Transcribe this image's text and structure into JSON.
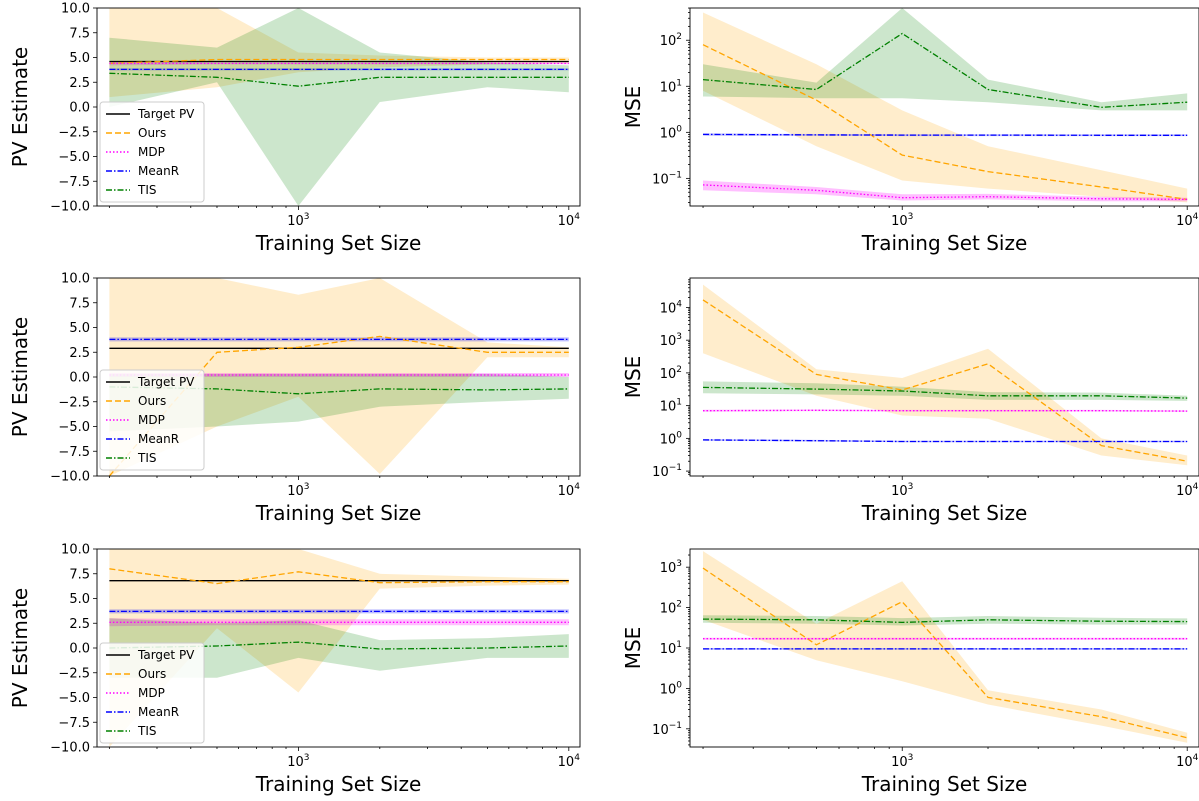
{
  "chart_data": [
    {
      "type": "line",
      "panel": "pv-1",
      "xlabel": "Training Set Size",
      "ylabel": "PV Estimate",
      "xscale": "log",
      "yscale": "linear",
      "xlim": [
        180,
        11000
      ],
      "ylim": [
        -10,
        10
      ],
      "xticks": [
        {
          "value": 1000,
          "base": "10",
          "exp": "3"
        },
        {
          "value": 10000,
          "base": "10",
          "exp": "4"
        }
      ],
      "yticks": [
        "-10.0",
        "-7.5",
        "-5.0",
        "-2.5",
        "0.0",
        "2.5",
        "5.0",
        "7.5",
        "10.0"
      ],
      "legend": {
        "placement": "lower-left",
        "entries": [
          "Target PV",
          "Ours",
          "MDP",
          "MeanR",
          "TIS"
        ]
      },
      "x": [
        200,
        500,
        1000,
        2000,
        5000,
        10000
      ],
      "series": [
        {
          "name": "Target PV",
          "color": "#000000",
          "dash": "solid",
          "values": [
            4.6,
            4.6,
            4.6,
            4.6,
            4.6,
            4.6
          ]
        },
        {
          "name": "Ours",
          "color": "#ffa500",
          "dash": "dashed",
          "values": [
            4.4,
            4.8,
            4.8,
            4.8,
            4.8,
            4.8
          ],
          "lower": [
            1.0,
            2.0,
            3.5,
            4.0,
            4.3,
            4.4
          ],
          "upper": [
            10.0,
            10.0,
            5.5,
            5.2,
            5.0,
            5.0
          ]
        },
        {
          "name": "MDP",
          "color": "#ff00ff",
          "dash": "dotted",
          "values": [
            4.4,
            4.4,
            4.4,
            4.4,
            4.4,
            4.4
          ],
          "lower": [
            4.2,
            4.3,
            4.3,
            4.3,
            4.3,
            4.3
          ],
          "upper": [
            4.6,
            4.5,
            4.5,
            4.5,
            4.5,
            4.5
          ]
        },
        {
          "name": "MeanR",
          "color": "#0000ff",
          "dash": "dashdot",
          "values": [
            3.8,
            3.8,
            3.8,
            3.8,
            3.8,
            3.8
          ],
          "lower": [
            3.7,
            3.7,
            3.7,
            3.7,
            3.7,
            3.7
          ],
          "upper": [
            3.9,
            3.9,
            3.9,
            3.9,
            3.9,
            3.9
          ]
        },
        {
          "name": "TIS",
          "color": "#008000",
          "dash": "dashdot",
          "values": [
            3.4,
            3.0,
            2.1,
            3.0,
            3.0,
            3.0
          ],
          "lower": [
            0.0,
            2.5,
            -10.0,
            0.5,
            2.0,
            1.5
          ],
          "upper": [
            7.0,
            6.0,
            10.0,
            5.5,
            4.5,
            4.2
          ]
        }
      ]
    },
    {
      "type": "line",
      "panel": "mse-1",
      "xlabel": "Training Set Size",
      "ylabel": "MSE",
      "xscale": "log",
      "yscale": "log",
      "xlim": [
        180,
        11000
      ],
      "ylim_exp": [
        -1.6,
        2.7
      ],
      "xticks": [
        {
          "value": 1000,
          "base": "10",
          "exp": "3"
        },
        {
          "value": 10000,
          "base": "10",
          "exp": "4"
        }
      ],
      "yticks": [
        {
          "exp_value": -1,
          "base": "10",
          "exp": "−1"
        },
        {
          "exp_value": 0,
          "base": "10",
          "exp": "0"
        },
        {
          "exp_value": 1,
          "base": "10",
          "exp": "1"
        },
        {
          "exp_value": 2,
          "base": "10",
          "exp": "2"
        }
      ],
      "x": [
        200,
        500,
        1000,
        2000,
        5000,
        10000
      ],
      "series": [
        {
          "name": "Ours",
          "color": "#ffa500",
          "dash": "dashed",
          "values": [
            80,
            5.0,
            0.32,
            0.14,
            0.065,
            0.035
          ],
          "lower": [
            8,
            0.5,
            0.09,
            0.06,
            0.04,
            0.03
          ],
          "upper": [
            400,
            30,
            3.0,
            0.5,
            0.15,
            0.06
          ]
        },
        {
          "name": "MDP",
          "color": "#ff00ff",
          "dash": "dotted",
          "values": [
            0.072,
            0.055,
            0.038,
            0.04,
            0.036,
            0.035
          ],
          "lower": [
            0.055,
            0.045,
            0.033,
            0.035,
            0.032,
            0.032
          ],
          "upper": [
            0.09,
            0.065,
            0.045,
            0.046,
            0.04,
            0.038
          ]
        },
        {
          "name": "MeanR",
          "color": "#0000ff",
          "dash": "dashdot",
          "values": [
            0.9,
            0.88,
            0.87,
            0.87,
            0.86,
            0.86
          ],
          "lower": [
            0.85,
            0.84,
            0.83,
            0.83,
            0.83,
            0.83
          ],
          "upper": [
            0.95,
            0.92,
            0.91,
            0.91,
            0.9,
            0.9
          ]
        },
        {
          "name": "TIS",
          "color": "#008000",
          "dash": "dashdot",
          "values": [
            14,
            8.5,
            140,
            8.5,
            3.5,
            4.5
          ],
          "lower": [
            6,
            5.5,
            5.5,
            4.5,
            3.0,
            3.0
          ],
          "upper": [
            30,
            12,
            500,
            14,
            4.5,
            7
          ]
        }
      ]
    },
    {
      "type": "line",
      "panel": "pv-2",
      "xlabel": "Training Set Size",
      "ylabel": "PV Estimate",
      "xscale": "log",
      "yscale": "linear",
      "xlim": [
        180,
        11000
      ],
      "ylim": [
        -10,
        10
      ],
      "xticks": [
        {
          "value": 1000,
          "base": "10",
          "exp": "3"
        },
        {
          "value": 10000,
          "base": "10",
          "exp": "4"
        }
      ],
      "yticks": [
        "-10.0",
        "-7.5",
        "-5.0",
        "-2.5",
        "0.0",
        "2.5",
        "5.0",
        "7.5",
        "10.0"
      ],
      "legend": {
        "placement": "center-left",
        "entries": [
          "Target PV",
          "Ours",
          "MDP",
          "MeanR",
          "TIS"
        ]
      },
      "x": [
        200,
        500,
        1000,
        2000,
        5000,
        10000
      ],
      "series": [
        {
          "name": "Target PV",
          "color": "#000000",
          "dash": "solid",
          "values": [
            2.9,
            2.9,
            2.9,
            2.9,
            2.9,
            2.9
          ]
        },
        {
          "name": "Ours",
          "color": "#ffa500",
          "dash": "dashed",
          "values": [
            -10.0,
            2.5,
            3.0,
            4.1,
            2.5,
            2.5
          ],
          "lower": [
            -10.0,
            -5.0,
            -2.0,
            -9.8,
            2.0,
            2.0
          ],
          "upper": [
            10.0,
            10.0,
            8.3,
            10.0,
            3.5,
            3.0
          ]
        },
        {
          "name": "MDP",
          "color": "#ff00ff",
          "dash": "dotted",
          "values": [
            0.2,
            0.2,
            0.2,
            0.2,
            0.2,
            0.2
          ],
          "lower": [
            0.0,
            0.0,
            0.0,
            0.0,
            0.0,
            0.0
          ],
          "upper": [
            0.4,
            0.4,
            0.4,
            0.4,
            0.4,
            0.4
          ]
        },
        {
          "name": "MeanR",
          "color": "#0000ff",
          "dash": "dashdot",
          "values": [
            3.8,
            3.8,
            3.8,
            3.8,
            3.8,
            3.8
          ],
          "lower": [
            3.6,
            3.6,
            3.6,
            3.6,
            3.6,
            3.6
          ],
          "upper": [
            4.0,
            4.0,
            4.0,
            4.0,
            4.0,
            4.0
          ]
        },
        {
          "name": "TIS",
          "color": "#008000",
          "dash": "dashdot",
          "values": [
            -1.0,
            -1.2,
            -1.7,
            -1.2,
            -1.3,
            -1.2
          ],
          "lower": [
            -5.5,
            -5.0,
            -4.5,
            -3.0,
            -2.5,
            -2.2
          ],
          "upper": [
            0.3,
            0.3,
            0.3,
            0.3,
            0.3,
            0.0
          ]
        }
      ]
    },
    {
      "type": "line",
      "panel": "mse-2",
      "xlabel": "Training Set Size",
      "ylabel": "MSE",
      "xscale": "log",
      "yscale": "log",
      "xlim": [
        180,
        11000
      ],
      "ylim_exp": [
        -1.15,
        4.9
      ],
      "xticks": [
        {
          "value": 1000,
          "base": "10",
          "exp": "3"
        },
        {
          "value": 10000,
          "base": "10",
          "exp": "4"
        }
      ],
      "yticks": [
        {
          "exp_value": -1,
          "base": "10",
          "exp": "−1"
        },
        {
          "exp_value": 0,
          "base": "10",
          "exp": "0"
        },
        {
          "exp_value": 1,
          "base": "10",
          "exp": "1"
        },
        {
          "exp_value": 2,
          "base": "10",
          "exp": "2"
        },
        {
          "exp_value": 3,
          "base": "10",
          "exp": "3"
        },
        {
          "exp_value": 4,
          "base": "10",
          "exp": "4"
        }
      ],
      "x": [
        200,
        500,
        1000,
        2000,
        5000,
        10000
      ],
      "series": [
        {
          "name": "Ours",
          "color": "#ffa500",
          "dash": "dashed",
          "values": [
            17000,
            90,
            30,
            190,
            0.6,
            0.2
          ],
          "lower": [
            400,
            20,
            5,
            4,
            0.3,
            0.15
          ],
          "upper": [
            50000,
            130,
            70,
            550,
            1.0,
            0.3
          ]
        },
        {
          "name": "MDP",
          "color": "#ff00ff",
          "dash": "dotted",
          "values": [
            7.0,
            7.2,
            7.0,
            7.0,
            7.0,
            6.8
          ],
          "lower": [
            6.5,
            6.8,
            6.6,
            6.6,
            6.6,
            6.4
          ],
          "upper": [
            7.5,
            7.6,
            7.4,
            7.4,
            7.4,
            7.2
          ]
        },
        {
          "name": "MeanR",
          "color": "#0000ff",
          "dash": "dashdot",
          "values": [
            0.9,
            0.85,
            0.8,
            0.8,
            0.8,
            0.8
          ],
          "lower": [
            0.85,
            0.8,
            0.76,
            0.76,
            0.76,
            0.76
          ],
          "upper": [
            0.95,
            0.9,
            0.84,
            0.84,
            0.84,
            0.84
          ]
        },
        {
          "name": "TIS",
          "color": "#008000",
          "dash": "dashdot",
          "values": [
            36,
            32,
            28,
            20,
            20,
            17
          ],
          "lower": [
            24,
            22,
            20,
            15,
            15,
            14
          ],
          "upper": [
            55,
            48,
            38,
            26,
            25,
            20
          ]
        }
      ]
    },
    {
      "type": "line",
      "panel": "pv-3",
      "xlabel": "Training Set Size",
      "ylabel": "PV Estimate",
      "xscale": "log",
      "yscale": "linear",
      "xlim": [
        180,
        11000
      ],
      "ylim": [
        -10,
        10
      ],
      "xticks": [
        {
          "value": 1000,
          "base": "10",
          "exp": "3"
        },
        {
          "value": 10000,
          "base": "10",
          "exp": "4"
        }
      ],
      "yticks": [
        "-10.0",
        "-7.5",
        "-5.0",
        "-2.5",
        "0.0",
        "2.5",
        "5.0",
        "7.5",
        "10.0"
      ],
      "legend": {
        "placement": "lower-left",
        "entries": [
          "Target PV",
          "Ours",
          "MDP",
          "MeanR",
          "TIS"
        ]
      },
      "x": [
        200,
        500,
        1000,
        2000,
        5000,
        10000
      ],
      "series": [
        {
          "name": "Target PV",
          "color": "#000000",
          "dash": "solid",
          "values": [
            6.8,
            6.8,
            6.8,
            6.8,
            6.8,
            6.8
          ]
        },
        {
          "name": "Ours",
          "color": "#ffa500",
          "dash": "dashed",
          "values": [
            8.0,
            6.5,
            7.7,
            6.6,
            6.7,
            6.7
          ],
          "lower": [
            -10.0,
            2.0,
            -4.5,
            6.0,
            6.3,
            6.4
          ],
          "upper": [
            10.0,
            10.0,
            10.0,
            7.5,
            7.2,
            7.0
          ]
        },
        {
          "name": "MDP",
          "color": "#ff00ff",
          "dash": "dotted",
          "values": [
            2.6,
            2.6,
            2.6,
            2.6,
            2.6,
            2.6
          ],
          "lower": [
            2.2,
            2.3,
            2.3,
            2.3,
            2.3,
            2.3
          ],
          "upper": [
            3.0,
            2.9,
            2.9,
            2.9,
            2.9,
            2.9
          ]
        },
        {
          "name": "MeanR",
          "color": "#0000ff",
          "dash": "dashdot",
          "values": [
            3.7,
            3.7,
            3.7,
            3.7,
            3.7,
            3.7
          ],
          "lower": [
            3.5,
            3.5,
            3.5,
            3.5,
            3.5,
            3.5
          ],
          "upper": [
            3.9,
            3.9,
            3.9,
            3.9,
            3.9,
            3.9
          ]
        },
        {
          "name": "TIS",
          "color": "#008000",
          "dash": "dashdot",
          "values": [
            0.0,
            0.2,
            0.6,
            -0.1,
            0.0,
            0.2
          ],
          "lower": [
            -3.0,
            -3.0,
            -1.0,
            -2.3,
            -1.0,
            -1.0
          ],
          "upper": [
            3.0,
            2.5,
            2.8,
            0.8,
            1.0,
            1.4
          ]
        }
      ]
    },
    {
      "type": "line",
      "panel": "mse-3",
      "xlabel": "Training Set Size",
      "ylabel": "MSE",
      "xscale": "log",
      "yscale": "log",
      "xlim": [
        180,
        11000
      ],
      "ylim_exp": [
        -1.45,
        3.45
      ],
      "xticks": [
        {
          "value": 1000,
          "base": "10",
          "exp": "3"
        },
        {
          "value": 10000,
          "base": "10",
          "exp": "4"
        }
      ],
      "yticks": [
        {
          "exp_value": -1,
          "base": "10",
          "exp": "−1"
        },
        {
          "exp_value": 0,
          "base": "10",
          "exp": "0"
        },
        {
          "exp_value": 1,
          "base": "10",
          "exp": "1"
        },
        {
          "exp_value": 2,
          "base": "10",
          "exp": "2"
        },
        {
          "exp_value": 3,
          "base": "10",
          "exp": "3"
        }
      ],
      "x": [
        200,
        500,
        1000,
        2000,
        5000,
        10000
      ],
      "series": [
        {
          "name": "Ours",
          "color": "#ffa500",
          "dash": "dashed",
          "values": [
            950,
            12,
            140,
            0.6,
            0.2,
            0.06
          ],
          "lower": [
            50,
            5,
            1.5,
            0.4,
            0.12,
            0.045
          ],
          "upper": [
            2500,
            40,
            450,
            0.9,
            0.3,
            0.08
          ]
        },
        {
          "name": "MDP",
          "color": "#ff00ff",
          "dash": "dotted",
          "values": [
            17,
            17,
            17,
            17,
            17,
            17
          ],
          "lower": [
            16,
            16,
            16,
            16,
            16,
            16
          ],
          "upper": [
            18,
            18,
            18,
            18,
            18,
            18
          ]
        },
        {
          "name": "MeanR",
          "color": "#0000ff",
          "dash": "dashdot",
          "values": [
            9.5,
            9.5,
            9.5,
            9.5,
            9.5,
            9.5
          ],
          "lower": [
            9.0,
            9.0,
            9.0,
            9.0,
            9.0,
            9.0
          ],
          "upper": [
            10.0,
            10.0,
            10.0,
            10.0,
            10.0,
            10.0
          ]
        },
        {
          "name": "TIS",
          "color": "#008000",
          "dash": "dashdot",
          "values": [
            52,
            50,
            43,
            50,
            46,
            45
          ],
          "lower": [
            42,
            40,
            36,
            40,
            38,
            38
          ],
          "upper": [
            65,
            62,
            55,
            62,
            56,
            54
          ]
        }
      ]
    }
  ]
}
